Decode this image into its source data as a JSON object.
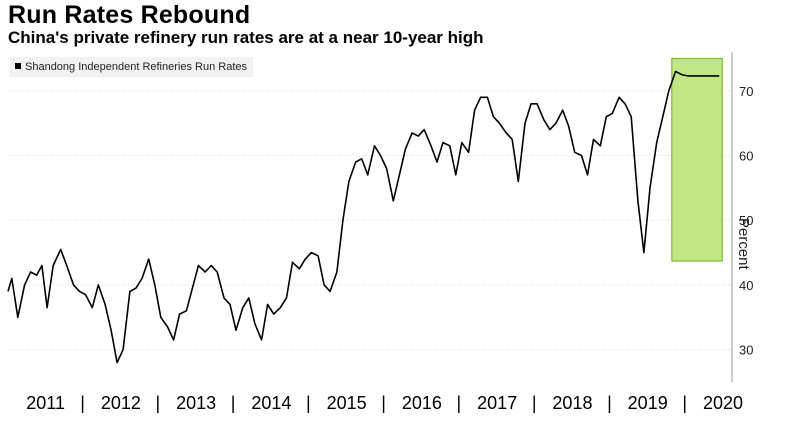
{
  "title": "Run Rates Rebound",
  "subtitle": "China's private refinery run rates are at a near 10-year high",
  "legend": {
    "label": "Shandong Independent Refineries Run Rates"
  },
  "colors": {
    "line": "#000000",
    "grid": "#d9d9d9",
    "highlight_fill": "#b5e36b",
    "highlight_border": "#7fbf2a"
  },
  "chart_data": {
    "type": "line",
    "title": "Run Rates Rebound",
    "subtitle": "China's private refinery run rates are at a near 10-year high",
    "ylabel": "Percent",
    "ylim": [
      25,
      76
    ],
    "yticks": [
      30,
      40,
      50,
      60,
      70
    ],
    "xlim": [
      2011.0,
      2020.62
    ],
    "grid": "horizontal",
    "legend_placement": "top-left",
    "xtick_labels": [
      "2011",
      "2012",
      "2013",
      "2014",
      "2015",
      "2016",
      "2017",
      "2018",
      "2019",
      "2020"
    ],
    "highlight": {
      "x_start": 2019.82,
      "x_end": 2020.49,
      "y_low": 43.7,
      "y_high": 75.0
    },
    "series": [
      {
        "name": "Shandong Independent Refineries Run Rates",
        "x": [
          2011.0,
          2011.05,
          2011.13,
          2011.22,
          2011.3,
          2011.38,
          2011.45,
          2011.52,
          2011.6,
          2011.7,
          2011.78,
          2011.87,
          2011.95,
          2012.03,
          2012.12,
          2012.2,
          2012.29,
          2012.37,
          2012.45,
          2012.53,
          2012.62,
          2012.7,
          2012.78,
          2012.87,
          2012.95,
          2013.03,
          2013.12,
          2013.2,
          2013.28,
          2013.37,
          2013.45,
          2013.53,
          2013.62,
          2013.7,
          2013.78,
          2013.87,
          2013.95,
          2014.03,
          2014.12,
          2014.2,
          2014.28,
          2014.37,
          2014.45,
          2014.53,
          2014.62,
          2014.7,
          2014.78,
          2014.87,
          2014.95,
          2015.03,
          2015.12,
          2015.2,
          2015.28,
          2015.37,
          2015.45,
          2015.53,
          2015.62,
          2015.7,
          2015.78,
          2015.87,
          2015.95,
          2016.03,
          2016.12,
          2016.2,
          2016.28,
          2016.37,
          2016.45,
          2016.53,
          2016.62,
          2016.7,
          2016.78,
          2016.87,
          2016.95,
          2017.03,
          2017.12,
          2017.2,
          2017.28,
          2017.37,
          2017.45,
          2017.53,
          2017.62,
          2017.7,
          2017.78,
          2017.87,
          2017.95,
          2018.03,
          2018.12,
          2018.2,
          2018.28,
          2018.37,
          2018.45,
          2018.53,
          2018.62,
          2018.7,
          2018.78,
          2018.87,
          2018.95,
          2019.03,
          2019.12,
          2019.2,
          2019.28,
          2019.37,
          2019.45,
          2019.53,
          2019.62,
          2019.7,
          2019.78,
          2019.87,
          2019.95,
          2020.03,
          2020.12,
          2020.2,
          2020.28,
          2020.37,
          2020.45
        ],
        "values": [
          39.0,
          41.0,
          35.0,
          40.0,
          42.0,
          41.5,
          43.0,
          36.5,
          43.0,
          45.5,
          43.0,
          40.0,
          39.0,
          38.5,
          36.5,
          40.0,
          37.0,
          33.0,
          28.0,
          30.0,
          39.0,
          39.5,
          41.0,
          44.0,
          40.0,
          35.0,
          33.5,
          31.5,
          35.5,
          36.0,
          39.5,
          43.0,
          42.0,
          43.0,
          42.0,
          38.0,
          37.0,
          33.0,
          36.5,
          38.0,
          34.0,
          31.5,
          37.0,
          35.5,
          36.5,
          38.0,
          43.5,
          42.5,
          44.0,
          45.0,
          44.5,
          40.0,
          39.0,
          42.0,
          50.0,
          56.0,
          59.0,
          59.5,
          57.0,
          61.5,
          60.0,
          58.0,
          53.0,
          57.0,
          61.0,
          63.5,
          63.0,
          64.0,
          61.5,
          59.0,
          62.0,
          61.5,
          57.0,
          62.0,
          60.5,
          67.0,
          69.0,
          69.0,
          66.0,
          65.0,
          63.5,
          62.5,
          56.0,
          65.0,
          68.0,
          68.0,
          65.5,
          64.0,
          65.0,
          67.0,
          64.5,
          60.5,
          60.0,
          57.0,
          62.5,
          61.5,
          66.0,
          66.5,
          69.0,
          68.0,
          66.0,
          53.0,
          45.0,
          55.0,
          62.0,
          66.0,
          70.0,
          73.0,
          72.5,
          72.3,
          72.3,
          72.3,
          72.3,
          72.3,
          72.3
        ]
      }
    ]
  }
}
